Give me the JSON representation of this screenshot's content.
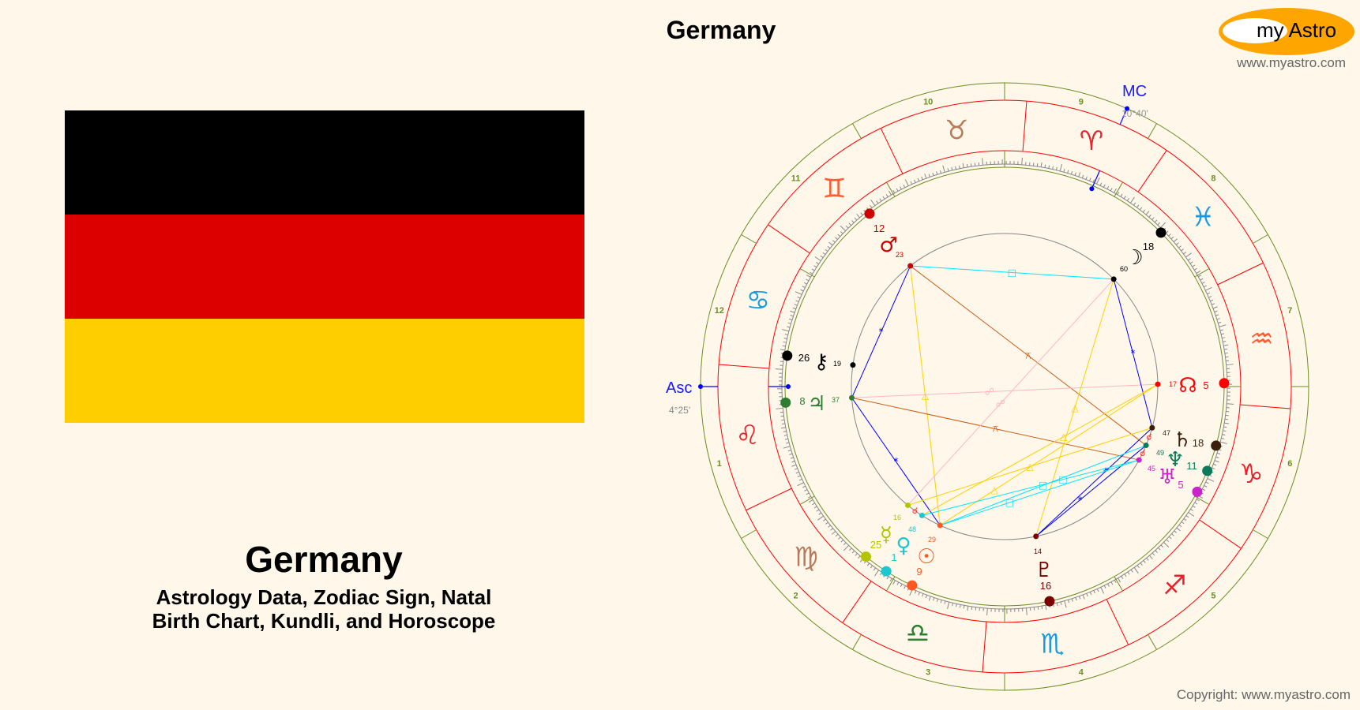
{
  "header": {
    "title": "Germany"
  },
  "logo": {
    "text": "my Astro",
    "site": "www.myastro.com"
  },
  "flag": {
    "colors": [
      "#000000",
      "#dd0000",
      "#ffce00"
    ]
  },
  "main": {
    "title": "Germany",
    "subtitle_line1": "Astrology Data, Zodiac Sign, Natal",
    "subtitle_line2": "Birth Chart, Kundli, and Horoscope"
  },
  "footer": {
    "copyright": "Copyright: www.myastro.com"
  },
  "chart": {
    "asc": {
      "label": "Asc",
      "value": "4°25'",
      "sign": "Leo",
      "longitude": 124.4167
    },
    "mc": {
      "label": "MC",
      "value": "10°40'",
      "sign": "Aries",
      "longitude": 10.6667
    },
    "houses": [
      "1",
      "2",
      "3",
      "4",
      "5",
      "6",
      "7",
      "8",
      "9",
      "10",
      "11",
      "12"
    ],
    "signs": [
      {
        "name": "Aries",
        "glyph": "♈",
        "color": "#e8222b"
      },
      {
        "name": "Taurus",
        "glyph": "♉",
        "color": "#b87a5a"
      },
      {
        "name": "Gemini",
        "glyph": "♊",
        "color": "#ff5a30"
      },
      {
        "name": "Cancer",
        "glyph": "♋",
        "color": "#1a9be0"
      },
      {
        "name": "Leo",
        "glyph": "♌",
        "color": "#e8222b"
      },
      {
        "name": "Virgo",
        "glyph": "♍",
        "color": "#b87a5a"
      },
      {
        "name": "Libra",
        "glyph": "♎",
        "color": "#2e7d32"
      },
      {
        "name": "Scorpio",
        "glyph": "♏",
        "color": "#1a9be0"
      },
      {
        "name": "Sagittarius",
        "glyph": "♐",
        "color": "#e8222b"
      },
      {
        "name": "Capricorn",
        "glyph": "♑",
        "color": "#e8222b"
      },
      {
        "name": "Aquarius",
        "glyph": "♒",
        "color": "#ff5a30"
      },
      {
        "name": "Pisces",
        "glyph": "♓",
        "color": "#1a9be0"
      }
    ],
    "planets": [
      {
        "id": "mars",
        "name": "Mars",
        "glyph": "♂",
        "sign": 2,
        "deg": "12",
        "min": "23",
        "color": "#cc0000"
      },
      {
        "id": "moon",
        "name": "Moon",
        "glyph": "☽",
        "sign": 11,
        "deg": "18",
        "min": "60",
        "color": "#000000"
      },
      {
        "id": "chiron",
        "name": "Chiron",
        "glyph": "⚷",
        "sign": 3,
        "deg": "26",
        "min": "19",
        "color": "#000000"
      },
      {
        "id": "jupiter",
        "name": "Jupiter",
        "glyph": "♃",
        "sign": 4,
        "deg": "8",
        "min": "37",
        "color": "#2e7d32"
      },
      {
        "id": "node",
        "name": "North Node",
        "glyph": "☊",
        "sign": 10,
        "deg": "5",
        "min": "17",
        "color": "#ff0000"
      },
      {
        "id": "saturn",
        "name": "Saturn",
        "glyph": "♄",
        "sign": 9,
        "deg": "18",
        "min": "47",
        "color": "#3b1f0a"
      },
      {
        "id": "neptune",
        "name": "Neptune",
        "glyph": "♆",
        "sign": 9,
        "deg": "11",
        "min": "49",
        "color": "#0a7a5a"
      },
      {
        "id": "uranus",
        "name": "Uranus",
        "glyph": "♅",
        "sign": 9,
        "deg": "5",
        "min": "45",
        "color": "#cc22cc"
      },
      {
        "id": "pluto",
        "name": "Pluto",
        "glyph": "♇",
        "sign": 7,
        "deg": "16",
        "min": "14",
        "color": "#7a0000"
      },
      {
        "id": "mercury",
        "name": "Mercury",
        "glyph": "☿",
        "sign": 5,
        "deg": "25",
        "min": "16",
        "color": "#b5c400"
      },
      {
        "id": "venus",
        "name": "Venus",
        "glyph": "♀",
        "sign": 6,
        "deg": "1",
        "min": "48",
        "color": "#1cc8d0"
      },
      {
        "id": "sun",
        "name": "Sun",
        "glyph": "☉",
        "sign": 6,
        "deg": "9",
        "min": "29",
        "color": "#ff5722"
      }
    ],
    "aspect_types": {
      "conjunction": {
        "symbol": "☌",
        "color": "#ff3030"
      },
      "sextile": {
        "symbol": "*",
        "color": "#0000ff"
      },
      "square": {
        "symbol": "□",
        "color": "#00e5ff"
      },
      "trine": {
        "symbol": "△",
        "color": "#ffd000"
      },
      "quincunx": {
        "symbol": "⚻",
        "color": "#c8601a"
      },
      "opposition": {
        "symbol": "☍",
        "color": "#ffb6c1"
      }
    },
    "aspects": [
      {
        "a": "mars",
        "b": "moon",
        "type": "square"
      },
      {
        "a": "mars",
        "b": "sun",
        "type": "trine"
      },
      {
        "a": "mars",
        "b": "neptune",
        "type": "quincunx"
      },
      {
        "a": "mars",
        "b": "jupiter",
        "type": "sextile"
      },
      {
        "a": "jupiter",
        "b": "sun",
        "type": "sextile"
      },
      {
        "a": "jupiter",
        "b": "node",
        "type": "opposition"
      },
      {
        "a": "jupiter",
        "b": "uranus",
        "type": "quincunx"
      },
      {
        "a": "moon",
        "b": "saturn",
        "type": "sextile"
      },
      {
        "a": "moon",
        "b": "pluto",
        "type": "trine"
      },
      {
        "a": "moon",
        "b": "mercury",
        "type": "opposition"
      },
      {
        "a": "node",
        "b": "venus",
        "type": "trine"
      },
      {
        "a": "node",
        "b": "sun",
        "type": "trine"
      },
      {
        "a": "saturn",
        "b": "mercury",
        "type": "trine"
      },
      {
        "a": "saturn",
        "b": "pluto",
        "type": "sextile"
      },
      {
        "a": "neptune",
        "b": "pluto",
        "type": "sextile"
      },
      {
        "a": "sun",
        "b": "neptune",
        "type": "square"
      },
      {
        "a": "sun",
        "b": "uranus",
        "type": "square"
      },
      {
        "a": "venus",
        "b": "uranus",
        "type": "square"
      },
      {
        "a": "mercury",
        "b": "venus",
        "type": "conjunction"
      },
      {
        "a": "saturn",
        "b": "neptune",
        "type": "conjunction"
      },
      {
        "a": "neptune",
        "b": "uranus",
        "type": "conjunction"
      }
    ]
  }
}
